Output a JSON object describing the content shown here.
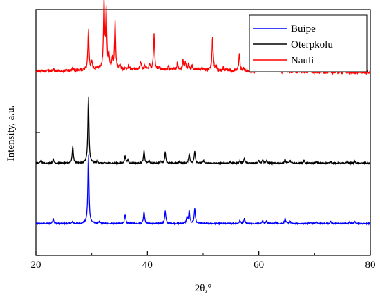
{
  "chart_data": {
    "type": "line",
    "title": "",
    "xlabel": "2θ,°",
    "ylabel": "Intensity, a.u.",
    "xlim": [
      20,
      80
    ],
    "x_ticks": [
      20,
      40,
      60,
      80
    ],
    "y_ticks_labeled": false,
    "grid": false,
    "legend_position": "top-right",
    "series": [
      {
        "name": "Buipe",
        "color": "#0000ff",
        "baseline": 0.13,
        "noise": 0.0025,
        "peaks": [
          {
            "x": 23.1,
            "h": 0.02
          },
          {
            "x": 26.6,
            "h": 0.008
          },
          {
            "x": 29.4,
            "h": 0.28
          },
          {
            "x": 31.4,
            "h": 0.008
          },
          {
            "x": 36.0,
            "h": 0.035
          },
          {
            "x": 39.4,
            "h": 0.05
          },
          {
            "x": 43.2,
            "h": 0.05
          },
          {
            "x": 47.1,
            "h": 0.025
          },
          {
            "x": 47.5,
            "h": 0.05
          },
          {
            "x": 48.5,
            "h": 0.06
          },
          {
            "x": 56.6,
            "h": 0.012
          },
          {
            "x": 57.4,
            "h": 0.02
          },
          {
            "x": 60.7,
            "h": 0.012
          },
          {
            "x": 61.4,
            "h": 0.01
          },
          {
            "x": 63.1,
            "h": 0.006
          },
          {
            "x": 64.7,
            "h": 0.02
          },
          {
            "x": 65.6,
            "h": 0.008
          },
          {
            "x": 69.2,
            "h": 0.005
          },
          {
            "x": 70.3,
            "h": 0.006
          },
          {
            "x": 72.9,
            "h": 0.008
          },
          {
            "x": 76.3,
            "h": 0.006
          },
          {
            "x": 77.2,
            "h": 0.007
          }
        ]
      },
      {
        "name": "Oterpkolu",
        "color": "#000000",
        "baseline": 0.375,
        "noise": 0.0025,
        "peaks": [
          {
            "x": 20.9,
            "h": 0.012
          },
          {
            "x": 23.1,
            "h": 0.015
          },
          {
            "x": 26.6,
            "h": 0.07
          },
          {
            "x": 29.4,
            "h": 0.27
          },
          {
            "x": 31.0,
            "h": 0.01
          },
          {
            "x": 36.0,
            "h": 0.03
          },
          {
            "x": 36.5,
            "h": 0.012
          },
          {
            "x": 39.4,
            "h": 0.05
          },
          {
            "x": 40.3,
            "h": 0.01
          },
          {
            "x": 42.4,
            "h": 0.008
          },
          {
            "x": 43.2,
            "h": 0.045
          },
          {
            "x": 45.8,
            "h": 0.008
          },
          {
            "x": 47.5,
            "h": 0.04
          },
          {
            "x": 48.5,
            "h": 0.05
          },
          {
            "x": 50.1,
            "h": 0.01
          },
          {
            "x": 54.9,
            "h": 0.006
          },
          {
            "x": 56.6,
            "h": 0.01
          },
          {
            "x": 57.4,
            "h": 0.02
          },
          {
            "x": 60.0,
            "h": 0.012
          },
          {
            "x": 60.7,
            "h": 0.015
          },
          {
            "x": 61.4,
            "h": 0.01
          },
          {
            "x": 64.7,
            "h": 0.015
          },
          {
            "x": 65.6,
            "h": 0.01
          },
          {
            "x": 68.1,
            "h": 0.01
          },
          {
            "x": 70.3,
            "h": 0.006
          },
          {
            "x": 72.9,
            "h": 0.008
          },
          {
            "x": 75.8,
            "h": 0.005
          },
          {
            "x": 77.2,
            "h": 0.007
          }
        ]
      },
      {
        "name": "Nauli",
        "color": "#ff0000",
        "baseline": 0.745,
        "noise": 0.006,
        "hump": {
          "center": 40,
          "width": 18,
          "height": 0.012
        },
        "peaks": [
          {
            "x": 23.2,
            "h": 0.008
          },
          {
            "x": 26.6,
            "h": 0.01
          },
          {
            "x": 29.4,
            "h": 0.16
          },
          {
            "x": 30.0,
            "h": 0.035
          },
          {
            "x": 31.0,
            "h": 0.012
          },
          {
            "x": 32.2,
            "h": 0.27
          },
          {
            "x": 32.6,
            "h": 0.23
          },
          {
            "x": 33.1,
            "h": 0.05
          },
          {
            "x": 33.7,
            "h": 0.04
          },
          {
            "x": 34.2,
            "h": 0.19
          },
          {
            "x": 35.1,
            "h": 0.015
          },
          {
            "x": 36.6,
            "h": 0.015
          },
          {
            "x": 38.8,
            "h": 0.03
          },
          {
            "x": 39.5,
            "h": 0.015
          },
          {
            "x": 40.4,
            "h": 0.02
          },
          {
            "x": 41.2,
            "h": 0.14
          },
          {
            "x": 42.2,
            "h": 0.012
          },
          {
            "x": 43.8,
            "h": 0.015
          },
          {
            "x": 45.4,
            "h": 0.025
          },
          {
            "x": 46.4,
            "h": 0.035
          },
          {
            "x": 46.8,
            "h": 0.03
          },
          {
            "x": 47.4,
            "h": 0.025
          },
          {
            "x": 48.0,
            "h": 0.015
          },
          {
            "x": 49.8,
            "h": 0.015
          },
          {
            "x": 51.7,
            "h": 0.14
          },
          {
            "x": 52.3,
            "h": 0.02
          },
          {
            "x": 53.6,
            "h": 0.01
          },
          {
            "x": 54.2,
            "h": 0.008
          },
          {
            "x": 56.5,
            "h": 0.07
          },
          {
            "x": 57.3,
            "h": 0.012
          },
          {
            "x": 59.9,
            "h": 0.04
          },
          {
            "x": 61.0,
            "h": 0.015
          },
          {
            "x": 62.4,
            "h": 0.09
          },
          {
            "x": 63.5,
            "h": 0.015
          },
          {
            "x": 64.8,
            "h": 0.01
          },
          {
            "x": 67.4,
            "h": 0.01
          },
          {
            "x": 69.0,
            "h": 0.008
          },
          {
            "x": 71.3,
            "h": 0.006
          },
          {
            "x": 73.9,
            "h": 0.006
          },
          {
            "x": 75.3,
            "h": 0.005
          },
          {
            "x": 78.0,
            "h": 0.005
          }
        ]
      }
    ]
  }
}
